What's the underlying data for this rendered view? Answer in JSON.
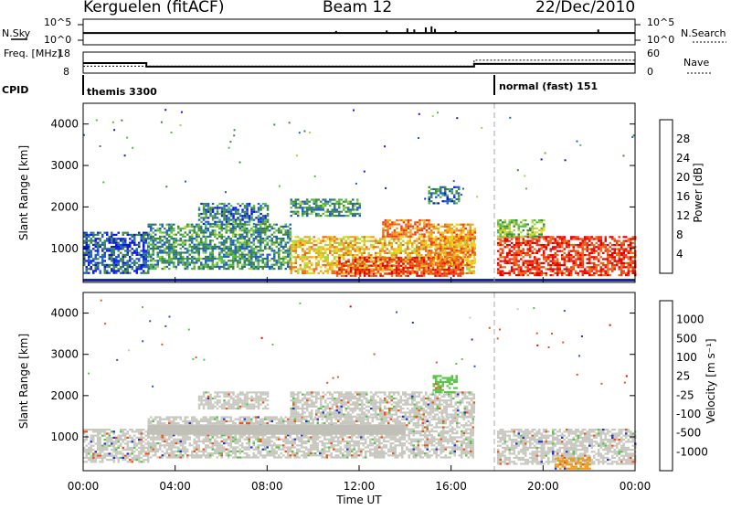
{
  "header": {
    "station": "Kerguelen (fitACF)",
    "beam": "Beam 12",
    "date": "22/Dec/2010"
  },
  "colors": {
    "scale": [
      "#0a18e0",
      "#1f5fcc",
      "#3e8a3a",
      "#58b84a",
      "#a8d63c",
      "#f0d21e",
      "#f0a31e",
      "#ec6a18",
      "#ee3a12",
      "#e60000"
    ],
    "velocity_scale": [
      "#2233cc",
      "#2c4fd0",
      "#2f7a46",
      "#5cc34a",
      "#c8c8c0",
      "#f2d22c",
      "#f09a18",
      "#ef5212",
      "#e80000"
    ],
    "ground_scatter": "#c0c0b8"
  },
  "chart_data": [
    {
      "type": "line",
      "name": "sky_noise",
      "ylabel": "N.Sky",
      "y2label": "N.Search",
      "ticks_left": [
        "10^5",
        "10^0"
      ],
      "ticks_right": [
        "10^5",
        "10^0"
      ],
      "x_range_hours": [
        0,
        24
      ],
      "baseline_log10": 2.3,
      "spikes": [
        {
          "x": 14.1,
          "y": 3.2
        },
        {
          "x": 14.4,
          "y": 3.0
        },
        {
          "x": 14.9,
          "y": 3.4
        },
        {
          "x": 15.15,
          "y": 3.6
        },
        {
          "x": 15.3,
          "y": 3.1
        },
        {
          "x": 11.0,
          "y": 2.7
        },
        {
          "x": 22.4,
          "y": 3.0
        },
        {
          "x": 13.2,
          "y": 2.8
        },
        {
          "x": 16.2,
          "y": 2.7
        }
      ]
    },
    {
      "type": "line",
      "name": "frequency_nave",
      "ylabel": "Freq. [MHz]",
      "y2label": "Nave",
      "ticks_left": [
        18,
        8
      ],
      "ticks_right": [
        60,
        0
      ],
      "freq_segments": [
        {
          "x0": 0.0,
          "x1": 2.75,
          "y": 12.8
        },
        {
          "x0": 2.75,
          "x1": 17.0,
          "y": 11.1
        },
        {
          "x0": 17.0,
          "y1_x": 24.0,
          "x1": 24.0,
          "y": 12.4
        }
      ],
      "nave_segments": [
        {
          "x0": 0.0,
          "x1": 17.0,
          "y": 20
        },
        {
          "x0": 17.0,
          "x1": 24.0,
          "y": 37
        }
      ]
    },
    {
      "type": "table",
      "name": "cpid",
      "label": "CPID",
      "entries": [
        {
          "x": 0.0,
          "text": "themis 3300"
        },
        {
          "x": 17.7,
          "text": "normal (fast) 151"
        }
      ]
    },
    {
      "type": "heatmap",
      "name": "power",
      "ylabel": "Slant Range [km]",
      "colorbar_label": "Power [dB]",
      "colorbar_ticks": [
        28,
        24,
        20,
        16,
        12,
        8,
        4
      ],
      "colorbar_range": [
        0,
        30
      ],
      "y_ticks": [
        1000,
        2000,
        3000,
        4000
      ],
      "y_range_km": [
        180,
        4500
      ],
      "x_range_hours": [
        0,
        24
      ],
      "regions": [
        {
          "x0": 0.0,
          "x1": 2.8,
          "y0": 400,
          "y1": 1400,
          "level": 4
        },
        {
          "x0": 2.8,
          "x1": 9.0,
          "y0": 500,
          "y1": 1600,
          "level": 8
        },
        {
          "x0": 5.0,
          "x1": 8.0,
          "y0": 1600,
          "y1": 2100,
          "level": 6
        },
        {
          "x0": 9.0,
          "x1": 17.0,
          "y0": 400,
          "y1": 1300,
          "level": 18
        },
        {
          "x0": 11.0,
          "x1": 16.5,
          "y0": 350,
          "y1": 800,
          "level": 26
        },
        {
          "x0": 13.0,
          "x1": 15.0,
          "y0": 1300,
          "y1": 1700,
          "level": 22
        },
        {
          "x0": 15.0,
          "x1": 17.0,
          "y0": 600,
          "y1": 1600,
          "level": 20
        },
        {
          "x0": 18.0,
          "x1": 24.0,
          "y0": 350,
          "y1": 1300,
          "level": 26
        },
        {
          "x0": 18.0,
          "x1": 20.0,
          "y0": 1300,
          "y1": 1700,
          "level": 12
        },
        {
          "x0": 9.0,
          "x1": 12.0,
          "y0": 1800,
          "y1": 2200,
          "level": 8
        },
        {
          "x0": 15.0,
          "x1": 16.3,
          "y0": 2100,
          "y1": 2500,
          "level": 6
        }
      ]
    },
    {
      "type": "heatmap",
      "name": "velocity",
      "ylabel": "Slant Range [km]",
      "colorbar_label": "Velocity [m s⁻¹]",
      "colorbar_ticks": [
        "1000",
        "500",
        "100",
        "25",
        "-25",
        "-100",
        "-500",
        "-1000"
      ],
      "y_ticks": [
        1000,
        2000,
        3000,
        4000
      ],
      "y_range_km": [
        180,
        4500
      ],
      "x_range_hours": [
        0,
        24
      ],
      "xlabel": "Time UT",
      "x_ticks": [
        "00:00",
        "04:00",
        "08:00",
        "12:00",
        "16:00",
        "20:00",
        "00:00"
      ],
      "regions": [
        {
          "x0": 2.8,
          "x1": 17.0,
          "y0": 500,
          "y1": 1500,
          "vel": 0
        },
        {
          "x0": 0.0,
          "x1": 2.8,
          "y0": 400,
          "y1": 1200,
          "vel": 0
        },
        {
          "x0": 5.0,
          "x1": 8.0,
          "y0": 1700,
          "y1": 2100,
          "vel": 0
        },
        {
          "x0": 9.0,
          "x1": 17.0,
          "y0": 1500,
          "y1": 2100,
          "vel": 0
        },
        {
          "x0": 18.0,
          "x1": 24.0,
          "y0": 350,
          "y1": 1200,
          "vel": 0
        },
        {
          "x0": 15.2,
          "x1": 16.2,
          "y0": 2100,
          "y1": 2500,
          "vel": 100
        },
        {
          "x0": 20.5,
          "x1": 22.0,
          "y0": 250,
          "y1": 500,
          "vel": -100
        }
      ],
      "ground_band": {
        "x0": 2.8,
        "x1": 14.0,
        "y0": 1050,
        "y1": 1300
      }
    }
  ]
}
